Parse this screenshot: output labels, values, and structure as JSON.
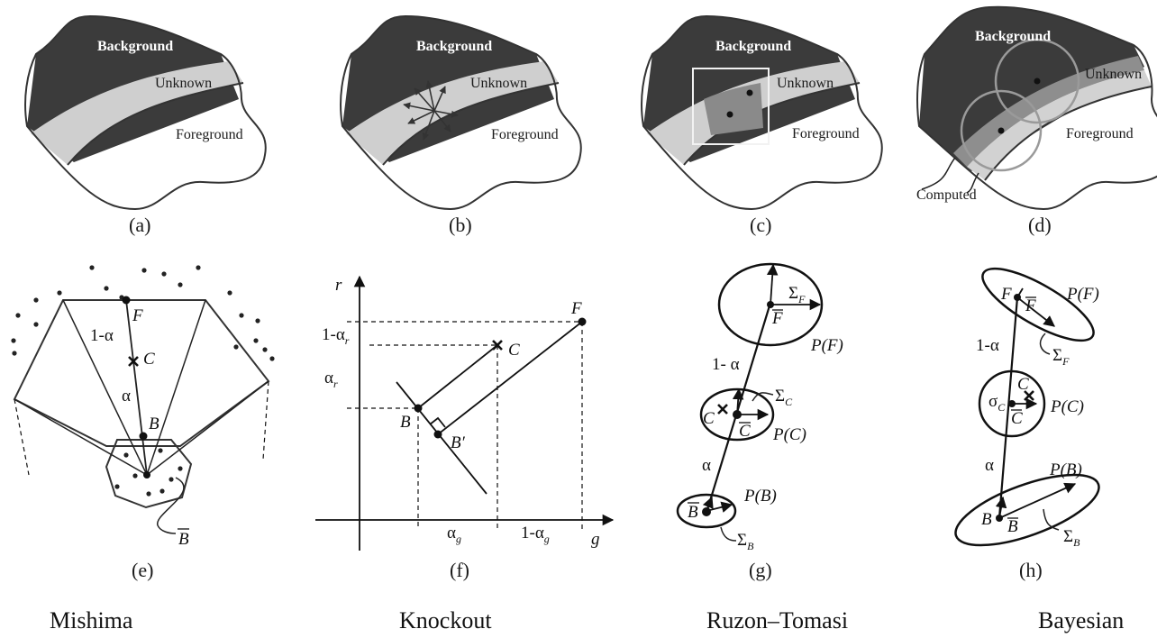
{
  "region_labels": {
    "background": "Background",
    "unknown": "Unknown",
    "foreground": "Foreground",
    "computed": "Computed"
  },
  "panel_captions": [
    "(a)",
    "(b)",
    "(c)",
    "(d)",
    "(e)",
    "(f)",
    "(g)",
    "(h)"
  ],
  "methods": [
    "Mishima",
    "Knockout",
    "Ruzon–Tomasi",
    "Bayesian"
  ],
  "panel_e": {
    "one_minus_alpha": "1-α",
    "alpha": "α",
    "F": "F",
    "C": "C",
    "B": "B",
    "Bbar": "B"
  },
  "panel_f": {
    "r_axis": "r",
    "g_axis": "g",
    "one_minus_alpha_r": "1-α",
    "one_minus_alpha_r_sub": "r",
    "alpha_r": "α",
    "alpha_r_sub": "r",
    "alpha_g": "α",
    "alpha_g_sub": "g",
    "one_minus_alpha_g": "1-α",
    "one_minus_alpha_g_sub": "g",
    "F": "F",
    "C": "C",
    "B": "B",
    "Bprime": "B′"
  },
  "panel_g": {
    "sigma_F": "Σ",
    "sigma_F_sub": "F",
    "Fbar": "F",
    "PF": "P(F)",
    "one_minus_alpha": "1- α",
    "sigma_C": "Σ",
    "sigma_C_sub": "C",
    "C": "C",
    "Cbar": "C",
    "PC": "P(C)",
    "alpha": "α",
    "PB": "P(B)",
    "Bbar": "B",
    "sigma_B": "Σ",
    "sigma_B_sub": "B"
  },
  "panel_h": {
    "F": "F",
    "Fbar": "F",
    "PF": "P(F)",
    "sigma_F": "Σ",
    "sigma_F_sub": "F",
    "one_minus_alpha": "1-α",
    "sigma_C": "σ",
    "sigma_C_sub": "C",
    "C": "C",
    "Cbar": "C",
    "PC": "P(C)",
    "alpha": "α",
    "PB": "P(B)",
    "B": "B",
    "Bbar": "B",
    "sigma_B": "Σ",
    "sigma_B_sub": "B"
  }
}
